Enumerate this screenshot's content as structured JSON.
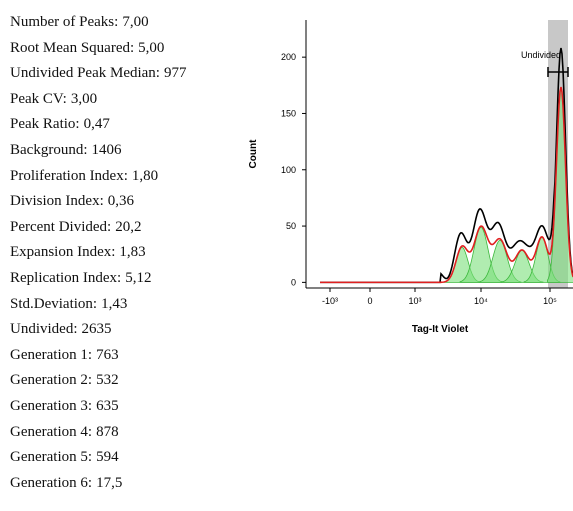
{
  "stats": [
    {
      "label": "Number of Peaks:",
      "value": "7,00"
    },
    {
      "label": "Root Mean Squared:",
      "value": "5,00"
    },
    {
      "label": "Undivided Peak Median:",
      "value": "977"
    },
    {
      "label": "Peak CV:",
      "value": "3,00"
    },
    {
      "label": "Peak Ratio:",
      "value": "0,47"
    },
    {
      "label": "Background:",
      "value": "1406"
    },
    {
      "label": "Proliferation Index:",
      "value": "1,80"
    },
    {
      "label": "Division Index:",
      "value": "0,36"
    },
    {
      "label": "Percent Divided:",
      "value": "20,2"
    },
    {
      "label": "Expansion Index:",
      "value": "1,83"
    },
    {
      "label": "Replication Index:",
      "value": "5,12"
    },
    {
      "label": "Std.Deviation:",
      "value": "1,43"
    },
    {
      "label": "Undivided:",
      "value": "2635"
    },
    {
      "label": "Generation 1:",
      "value": "763"
    },
    {
      "label": "Generation 2:",
      "value": "532"
    },
    {
      "label": "Generation 3:",
      "value": "635"
    },
    {
      "label": "Generation 4:",
      "value": "878"
    },
    {
      "label": "Generation 5:",
      "value": "594"
    },
    {
      "label": "Generation 6:",
      "value": "17,5"
    }
  ],
  "chart": {
    "y_label": "Count",
    "x_label": "Tag-It Violet",
    "gate_label": "Undivided",
    "ylim": [
      -5,
      233
    ],
    "yticks": [
      0,
      50,
      100,
      150,
      200
    ],
    "xticks": [
      "-10³",
      "0",
      "10³",
      "10⁴",
      "10⁵"
    ]
  }
}
